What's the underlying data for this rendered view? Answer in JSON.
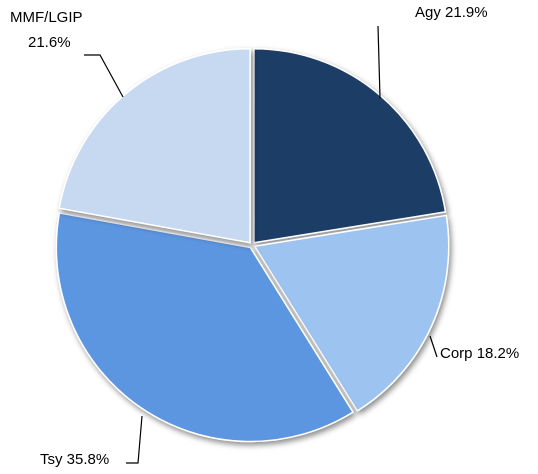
{
  "chart_data": {
    "type": "pie",
    "categories": [
      "Agy",
      "Corp",
      "Tsy",
      "MMF/LGIP"
    ],
    "values": [
      21.9,
      18.2,
      35.8,
      21.6
    ],
    "value_labels": [
      "21.9%",
      "18.2%",
      "35.8%",
      "21.6%"
    ],
    "colors": [
      "#1f3d66",
      "#9dc3f0",
      "#5b95e0",
      "#c6d9f1"
    ]
  }
}
